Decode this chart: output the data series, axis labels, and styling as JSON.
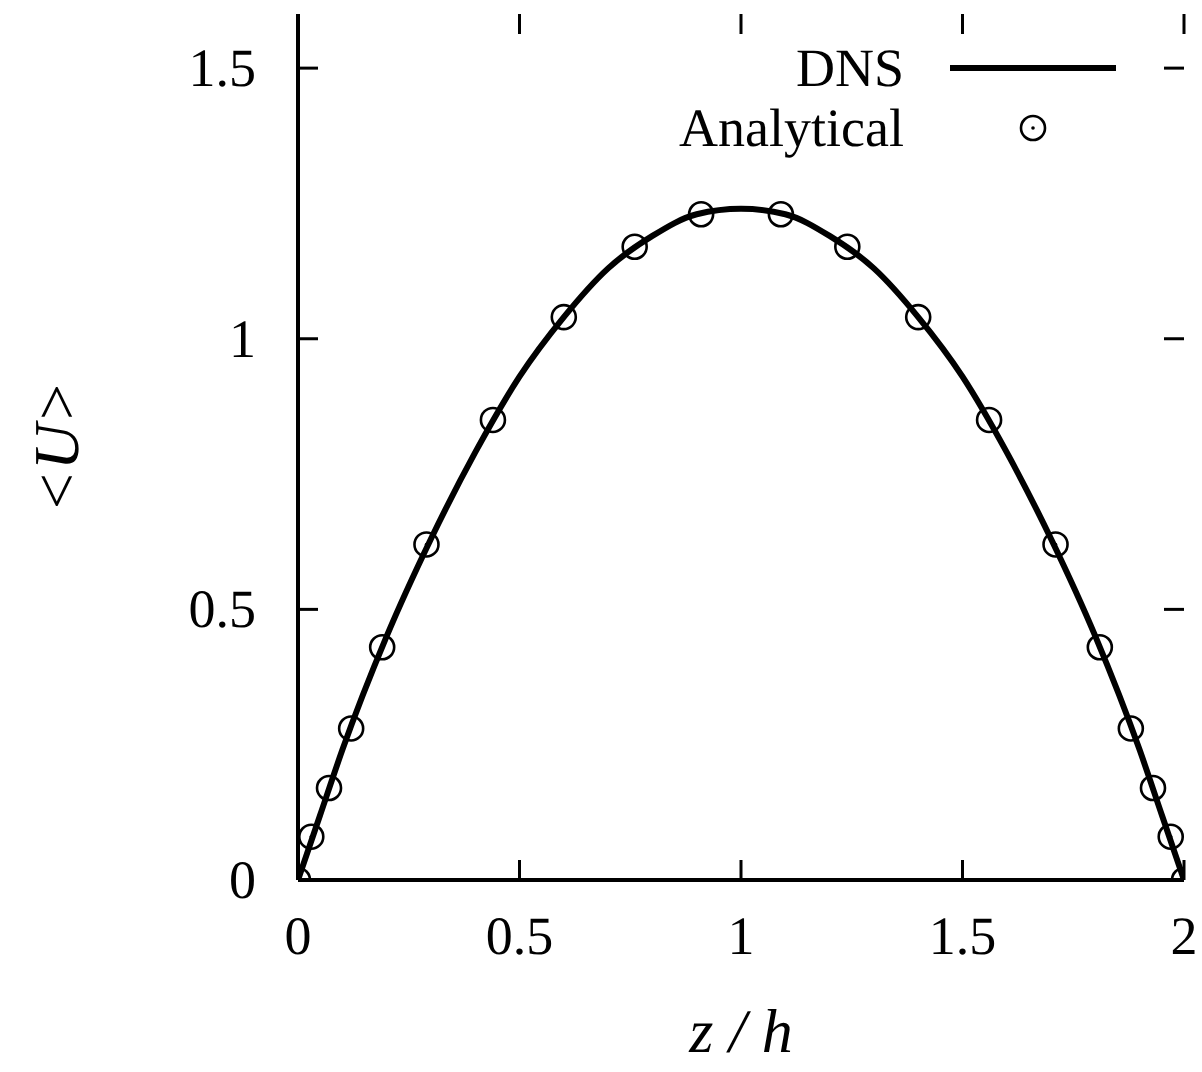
{
  "chart_data": {
    "type": "line",
    "xlabel": "z / h",
    "ylabel": "<U>",
    "xlim": [
      0,
      2
    ],
    "ylim": [
      0,
      1.6
    ],
    "xticks": [
      0,
      0.5,
      1,
      1.5,
      2
    ],
    "yticks": [
      0,
      0.5,
      1,
      1.5
    ],
    "legend": "top right",
    "series": [
      {
        "name": "DNS",
        "color": "#000000",
        "line_style": "solid",
        "marker": "none",
        "x": [
          0,
          0.05,
          0.1,
          0.2,
          0.3,
          0.4,
          0.5,
          0.6,
          0.7,
          0.8,
          0.9,
          1,
          1.1,
          1.2,
          1.3,
          1.4,
          1.5,
          1.6,
          1.7,
          1.8,
          1.9,
          1.95,
          2
        ],
        "values": [
          0,
          0.12,
          0.24,
          0.45,
          0.63,
          0.79,
          0.93,
          1.04,
          1.13,
          1.19,
          1.23,
          1.24,
          1.23,
          1.19,
          1.13,
          1.04,
          0.93,
          0.79,
          0.63,
          0.45,
          0.24,
          0.12,
          0
        ]
      },
      {
        "name": "Analytical",
        "type": "scatter",
        "color": "#000000",
        "marker": "circle",
        "x": [
          0,
          0.03,
          0.07,
          0.12,
          0.19,
          0.29,
          0.44,
          0.6,
          0.76,
          0.91,
          1.09,
          1.24,
          1.4,
          1.56,
          1.71,
          1.81,
          1.88,
          1.93,
          1.97,
          2
        ],
        "values": [
          0,
          0.08,
          0.17,
          0.28,
          0.43,
          0.62,
          0.85,
          1.04,
          1.17,
          1.23,
          1.23,
          1.17,
          1.04,
          0.85,
          0.62,
          0.43,
          0.28,
          0.17,
          0.08,
          0
        ]
      }
    ]
  }
}
